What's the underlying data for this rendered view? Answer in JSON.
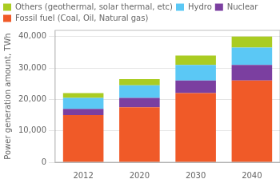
{
  "chart_data": {
    "type": "bar",
    "stacked": true,
    "categories": [
      "2012",
      "2020",
      "2030",
      "2040"
    ],
    "series": [
      {
        "name": "Fossil fuel (Coal, Oil, Natural gas)",
        "color": "#f05a28",
        "values": [
          15000,
          17500,
          22000,
          26000
        ]
      },
      {
        "name": "Nuclear",
        "color": "#7b3fa0",
        "values": [
          2000,
          3000,
          4000,
          5000
        ]
      },
      {
        "name": "Hydro",
        "color": "#5bc8f5",
        "values": [
          3500,
          4000,
          5000,
          5500
        ]
      },
      {
        "name": "Others (geothermal, solar thermal, etc)",
        "color": "#aacc22",
        "values": [
          1500,
          2000,
          3000,
          3500
        ]
      }
    ],
    "ylabel": "Power generation amount, TWh",
    "ylim": [
      0,
      42000
    ],
    "yticks": [
      0,
      {
        "value": 10000,
        "label": "10,000"
      },
      {
        "value": 20000,
        "label": "20,000"
      },
      {
        "value": 30000,
        "label": "30,000"
      },
      {
        "value": 40000,
        "label": "40,000"
      }
    ],
    "grid": true,
    "legend": "top"
  }
}
